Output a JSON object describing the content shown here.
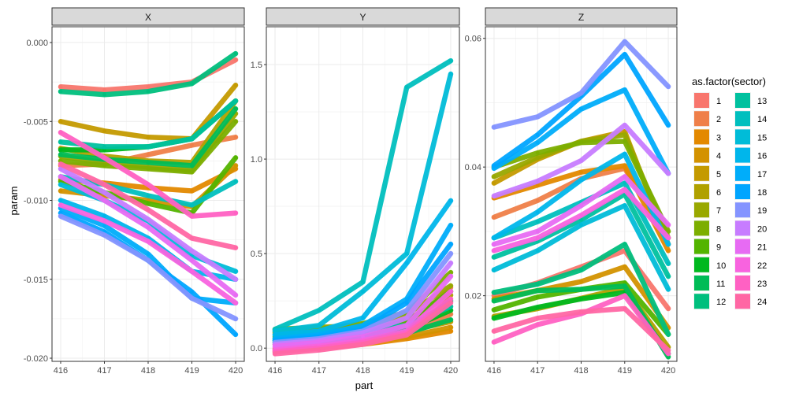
{
  "chart_data": {
    "type": "line",
    "xlabel": "part",
    "ylabel": "param",
    "x": [
      416,
      417,
      418,
      419,
      420
    ],
    "legend": {
      "title": "as.factor(sector)",
      "placement": "right",
      "entries": [
        "1",
        "2",
        "3",
        "4",
        "5",
        "6",
        "7",
        "8",
        "9",
        "10",
        "11",
        "12",
        "13",
        "14",
        "15",
        "16",
        "17",
        "18",
        "19",
        "20",
        "21",
        "22",
        "23",
        "24"
      ],
      "colors": [
        "#F8766D",
        "#EF7F49",
        "#E38900",
        "#D39200",
        "#C49A00",
        "#B0A100",
        "#99A800",
        "#7CAE00",
        "#53B400",
        "#00B81F",
        "#00BC56",
        "#00BF7D",
        "#00C19F",
        "#00BFBE",
        "#00BCD8",
        "#00B6EB",
        "#00ADFA",
        "#00A5FF",
        "#8494FF",
        "#C77CFF",
        "#E76BF3",
        "#F863DF",
        "#FF61C3",
        "#FF67A4"
      ]
    },
    "facets": [
      {
        "label": "X",
        "ylim": [
          -0.0202,
          0.001
        ],
        "yticks": [
          0.0,
          -0.005,
          -0.01,
          -0.015,
          -0.02
        ],
        "ytick_labels": [
          "0.000",
          "-0.005",
          "-0.010",
          "-0.015",
          "-0.020"
        ],
        "series": [
          {
            "sector": "1",
            "values": [
              -0.0028,
              -0.003,
              -0.0028,
              -0.0025,
              -0.0011
            ]
          },
          {
            "sector": "2",
            "values": [
              -0.0078,
              -0.0077,
              -0.0071,
              -0.0065,
              -0.006
            ]
          },
          {
            "sector": "3",
            "values": [
              -0.0087,
              -0.0089,
              -0.0092,
              -0.0094,
              -0.008
            ]
          },
          {
            "sector": "4",
            "values": [
              -0.0094,
              -0.0097,
              -0.01,
              -0.0104,
              -0.0078
            ]
          },
          {
            "sector": "5",
            "values": [
              -0.005,
              -0.0056,
              -0.006,
              -0.0061,
              -0.0027
            ]
          },
          {
            "sector": "6",
            "values": [
              -0.0067,
              -0.0072,
              -0.0075,
              -0.0076,
              -0.0037
            ]
          },
          {
            "sector": "7",
            "values": [
              -0.0072,
              -0.0076,
              -0.0079,
              -0.0081,
              -0.0045
            ]
          },
          {
            "sector": "8",
            "values": [
              -0.0075,
              -0.0078,
              -0.008,
              -0.0082,
              -0.005
            ]
          },
          {
            "sector": "9",
            "values": [
              -0.0088,
              -0.0095,
              -0.0102,
              -0.0108,
              -0.0073
            ]
          },
          {
            "sector": "10",
            "values": [
              -0.0068,
              -0.0068,
              -0.0066,
              -0.0061,
              -0.0037
            ]
          },
          {
            "sector": "11",
            "values": [
              -0.0071,
              -0.0074,
              -0.0076,
              -0.0078,
              -0.0042
            ]
          },
          {
            "sector": "12",
            "values": [
              -0.0031,
              -0.0033,
              -0.0031,
              -0.0026,
              -0.0007
            ]
          },
          {
            "sector": "13",
            "values": [
              -0.0063,
              -0.0066,
              -0.0066,
              -0.0061,
              -0.0037
            ]
          },
          {
            "sector": "14",
            "values": [
              -0.0085,
              -0.009,
              -0.0097,
              -0.0103,
              -0.0088
            ]
          },
          {
            "sector": "15",
            "values": [
              -0.009,
              -0.01,
              -0.0113,
              -0.0135,
              -0.0145
            ]
          },
          {
            "sector": "16",
            "values": [
              -0.01,
              -0.011,
              -0.0124,
              -0.0145,
              -0.015
            ]
          },
          {
            "sector": "17",
            "values": [
              -0.0105,
              -0.0116,
              -0.0134,
              -0.0162,
              -0.0165
            ]
          },
          {
            "sector": "18",
            "values": [
              -0.0108,
              -0.012,
              -0.0138,
              -0.0158,
              -0.0185
            ]
          },
          {
            "sector": "19",
            "values": [
              -0.011,
              -0.0122,
              -0.0138,
              -0.0162,
              -0.0175
            ]
          },
          {
            "sector": "20",
            "values": [
              -0.008,
              -0.0095,
              -0.0112,
              -0.0132,
              -0.015
            ]
          },
          {
            "sector": "21",
            "values": [
              -0.0085,
              -0.01,
              -0.0117,
              -0.0138,
              -0.016
            ]
          },
          {
            "sector": "22",
            "values": [
              -0.0103,
              -0.0113,
              -0.0126,
              -0.0145,
              -0.0165
            ]
          },
          {
            "sector": "23",
            "values": [
              -0.0057,
              -0.0073,
              -0.009,
              -0.011,
              -0.0108
            ]
          },
          {
            "sector": "24",
            "values": [
              -0.0077,
              -0.009,
              -0.0106,
              -0.0124,
              -0.013
            ]
          }
        ]
      },
      {
        "label": "Y",
        "ylim": [
          -0.07,
          1.7
        ],
        "yticks": [
          0.0,
          0.5,
          1.0,
          1.5
        ],
        "ytick_labels": [
          "0.0",
          "0.5",
          "1.0",
          "1.5"
        ],
        "series": [
          {
            "sector": "1",
            "values": [
              0.0,
              0.02,
              0.05,
              0.1,
              0.32
            ]
          },
          {
            "sector": "2",
            "values": [
              -0.01,
              0.01,
              0.04,
              0.08,
              0.18
            ]
          },
          {
            "sector": "3",
            "values": [
              -0.02,
              0.0,
              0.02,
              0.05,
              0.09
            ]
          },
          {
            "sector": "4",
            "values": [
              -0.01,
              0.01,
              0.03,
              0.06,
              0.11
            ]
          },
          {
            "sector": "5",
            "values": [
              0.02,
              0.04,
              0.06,
              0.09,
              0.14
            ]
          },
          {
            "sector": "6",
            "values": [
              0.08,
              0.09,
              0.11,
              0.15,
              0.28
            ]
          },
          {
            "sector": "7",
            "values": [
              0.1,
              0.11,
              0.12,
              0.18,
              0.33
            ]
          },
          {
            "sector": "8",
            "values": [
              0.09,
              0.1,
              0.13,
              0.19,
              0.4
            ]
          },
          {
            "sector": "9",
            "values": [
              0.06,
              0.07,
              0.09,
              0.14,
              0.3
            ]
          },
          {
            "sector": "10",
            "values": [
              0.04,
              0.05,
              0.07,
              0.1,
              0.2
            ]
          },
          {
            "sector": "11",
            "values": [
              0.03,
              0.04,
              0.05,
              0.08,
              0.15
            ]
          },
          {
            "sector": "12",
            "values": [
              0.05,
              0.06,
              0.07,
              0.1,
              0.25
            ]
          },
          {
            "sector": "13",
            "values": [
              0.07,
              0.08,
              0.1,
              0.12,
              0.22
            ]
          },
          {
            "sector": "14",
            "values": [
              0.1,
              0.2,
              0.35,
              1.38,
              1.52
            ]
          },
          {
            "sector": "15",
            "values": [
              0.09,
              0.12,
              0.3,
              0.5,
              1.45
            ]
          },
          {
            "sector": "16",
            "values": [
              0.07,
              0.09,
              0.16,
              0.45,
              0.78
            ]
          },
          {
            "sector": "17",
            "values": [
              0.05,
              0.07,
              0.12,
              0.26,
              0.65
            ]
          },
          {
            "sector": "18",
            "values": [
              0.04,
              0.06,
              0.1,
              0.24,
              0.55
            ]
          },
          {
            "sector": "19",
            "values": [
              0.03,
              0.05,
              0.09,
              0.2,
              0.5
            ]
          },
          {
            "sector": "20",
            "values": [
              0.02,
              0.04,
              0.08,
              0.16,
              0.45
            ]
          },
          {
            "sector": "21",
            "values": [
              0.01,
              0.03,
              0.06,
              0.12,
              0.38
            ]
          },
          {
            "sector": "22",
            "values": [
              -0.01,
              0.01,
              0.04,
              0.09,
              0.3
            ]
          },
          {
            "sector": "23",
            "values": [
              -0.02,
              0.0,
              0.03,
              0.08,
              0.26
            ]
          },
          {
            "sector": "24",
            "values": [
              -0.03,
              -0.01,
              0.02,
              0.07,
              0.24
            ]
          }
        ]
      },
      {
        "label": "Z",
        "ylim": [
          0.0098,
          0.0618
        ],
        "yticks": [
          0.02,
          0.04,
          0.06
        ],
        "ytick_labels": [
          "0.02",
          "0.04",
          "0.06"
        ],
        "series": [
          {
            "sector": "1",
            "values": [
              0.02,
              0.022,
              0.0245,
              0.027,
              0.018
            ]
          },
          {
            "sector": "2",
            "values": [
              0.0322,
              0.0348,
              0.0382,
              0.0398,
              0.029
            ]
          },
          {
            "sector": "3",
            "values": [
              0.0352,
              0.0372,
              0.0392,
              0.0402,
              0.027
            ]
          },
          {
            "sector": "4",
            "values": [
              0.0195,
              0.0208,
              0.0222,
              0.0245,
              0.015
            ]
          },
          {
            "sector": "5",
            "values": [
              0.0375,
              0.0412,
              0.044,
              0.0455,
              0.028
            ]
          },
          {
            "sector": "6",
            "values": [
              0.0168,
              0.018,
              0.0196,
              0.0212,
              0.012
            ]
          },
          {
            "sector": "7",
            "values": [
              0.0385,
              0.0415,
              0.044,
              0.045,
              0.029
            ]
          },
          {
            "sector": "8",
            "values": [
              0.04,
              0.0422,
              0.0438,
              0.044,
              0.03
            ]
          },
          {
            "sector": "9",
            "values": [
              0.0178,
              0.0198,
              0.021,
              0.022,
              0.014
            ]
          },
          {
            "sector": "10",
            "values": [
              0.0165,
              0.0182,
              0.0195,
              0.0205,
              0.011
            ]
          },
          {
            "sector": "11",
            "values": [
              0.0192,
              0.0208,
              0.021,
              0.0215,
              0.0105
            ]
          },
          {
            "sector": "12",
            "values": [
              0.0205,
              0.0218,
              0.024,
              0.028,
              0.014
            ]
          },
          {
            "sector": "13",
            "values": [
              0.026,
              0.0285,
              0.0318,
              0.0358,
              0.023
            ]
          },
          {
            "sector": "14",
            "values": [
              0.029,
              0.0315,
              0.0345,
              0.0375,
              0.025
            ]
          },
          {
            "sector": "15",
            "values": [
              0.024,
              0.027,
              0.031,
              0.034,
              0.021
            ]
          },
          {
            "sector": "16",
            "values": [
              0.029,
              0.033,
              0.038,
              0.042,
              0.028
            ]
          },
          {
            "sector": "17",
            "values": [
              0.0398,
              0.0438,
              0.049,
              0.052,
              0.039
            ]
          },
          {
            "sector": "18",
            "values": [
              0.0402,
              0.045,
              0.051,
              0.0575,
              0.0465
            ]
          },
          {
            "sector": "19",
            "values": [
              0.0462,
              0.0478,
              0.0515,
              0.0595,
              0.0525
            ]
          },
          {
            "sector": "20",
            "values": [
              0.0355,
              0.0378,
              0.041,
              0.0465,
              0.039
            ]
          },
          {
            "sector": "21",
            "values": [
              0.028,
              0.03,
              0.034,
              0.0385,
              0.031
            ]
          },
          {
            "sector": "22",
            "values": [
              0.027,
              0.029,
              0.0325,
              0.0365,
              0.029
            ]
          },
          {
            "sector": "23",
            "values": [
              0.0128,
              0.0155,
              0.0172,
              0.02,
              0.011
            ]
          },
          {
            "sector": "24",
            "values": [
              0.0145,
              0.0165,
              0.0175,
              0.018,
              0.0115
            ]
          }
        ]
      }
    ]
  }
}
